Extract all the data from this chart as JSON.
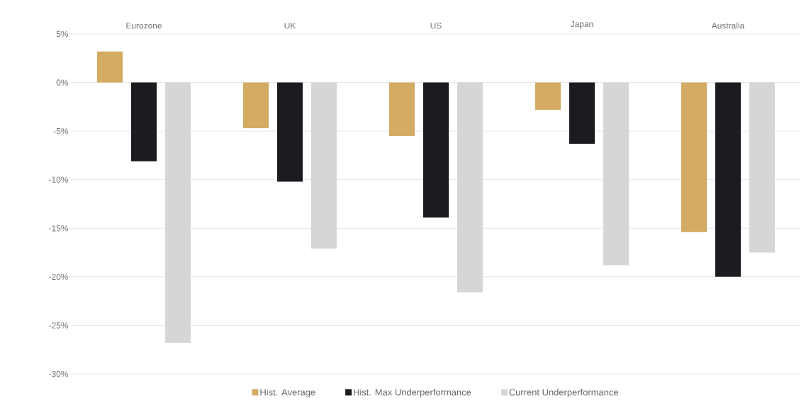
{
  "chart_data": {
    "type": "bar",
    "categories": [
      "Eurozone",
      "UK",
      "US",
      "Japan",
      "Australia"
    ],
    "series": [
      {
        "name": "Hist. Average",
        "color": "#d4ab63",
        "values": [
          3.2,
          -4.7,
          -5.5,
          -2.8,
          -15.4
        ]
      },
      {
        "name": "Hist. Max Underperformance",
        "color": "#1a1c20",
        "values": [
          -8.1,
          -10.2,
          -13.9,
          -6.3,
          -20.0
        ]
      },
      {
        "name": "Current Underperformance",
        "color": "#d6d6d6",
        "values": [
          -26.8,
          -17.1,
          -21.6,
          -18.8,
          -17.5
        ]
      }
    ],
    "ylim": [
      -30,
      5
    ],
    "yticks": [
      {
        "value": 5,
        "label": "5%"
      },
      {
        "value": 0,
        "label": "0%"
      },
      {
        "value": -5,
        "label": "-5%"
      },
      {
        "value": -10,
        "label": "-10%"
      },
      {
        "value": -15,
        "label": "-15%"
      },
      {
        "value": -20,
        "label": "-20%"
      },
      {
        "value": -25,
        "label": "-25%"
      },
      {
        "value": -30,
        "label": "-30%"
      }
    ],
    "grid": "y",
    "legend": "bottom"
  }
}
